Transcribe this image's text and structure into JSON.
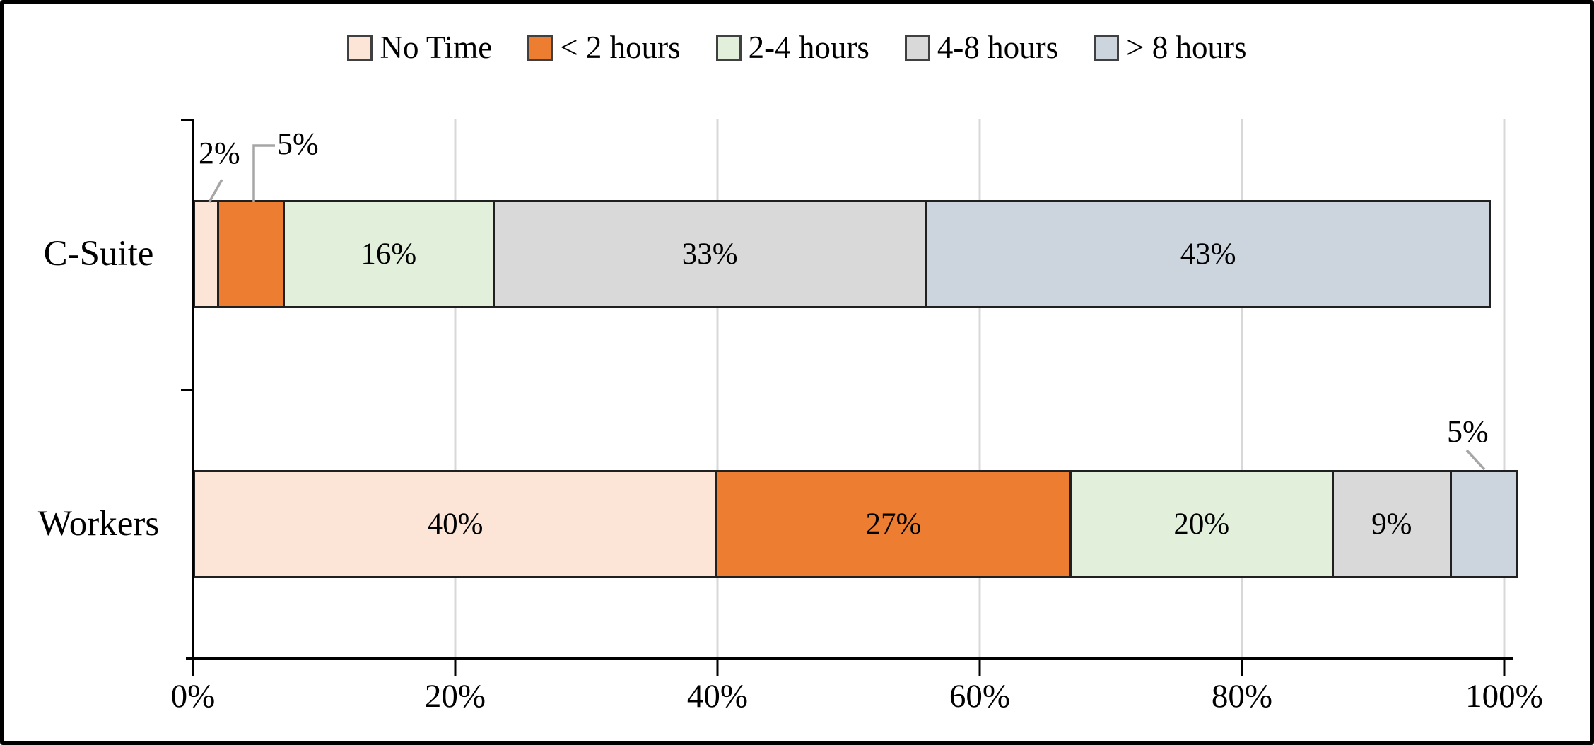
{
  "chart_data": {
    "type": "bar",
    "orientation": "horizontal",
    "stacked": true,
    "title": "",
    "xlabel": "",
    "ylabel": "",
    "categories": [
      "C-Suite",
      "Workers"
    ],
    "series": [
      {
        "name": "No Time",
        "color": "#fce4d6",
        "values": [
          2,
          40
        ]
      },
      {
        "name": "< 2 hours",
        "color": "#ed7d31",
        "values": [
          5,
          27
        ]
      },
      {
        "name": "2-4 hours",
        "color": "#e2efda",
        "values": [
          16,
          20
        ]
      },
      {
        "name": "4-8 hours",
        "color": "#d9d9d9",
        "values": [
          33,
          9
        ]
      },
      {
        "name": "> 8 hours",
        "color": "#ccd4de",
        "values": [
          43,
          5
        ]
      }
    ],
    "value_suffix": "%",
    "label_placement": [
      [
        "callout",
        "callout",
        "inside",
        "inside",
        "inside"
      ],
      [
        "inside",
        "inside",
        "inside",
        "inside",
        "callout"
      ]
    ],
    "callouts": [
      {
        "category": "C-Suite",
        "series": "No Time",
        "text": "2%"
      },
      {
        "category": "C-Suite",
        "series": "< 2 hours",
        "text": "5%"
      },
      {
        "category": "Workers",
        "series": "> 8 hours",
        "text": "5%"
      }
    ],
    "x_ticks": [
      "0%",
      "20%",
      "40%",
      "60%",
      "80%",
      "100%"
    ],
    "x_tick_values": [
      0,
      20,
      40,
      60,
      80,
      100
    ],
    "xlim": [
      0,
      100
    ],
    "grid": "vertical",
    "gridline_color": "#d8d8d8",
    "segment_border_color": "#202020",
    "leader_line_color": "#a6a6a6",
    "legend_position": "top"
  }
}
